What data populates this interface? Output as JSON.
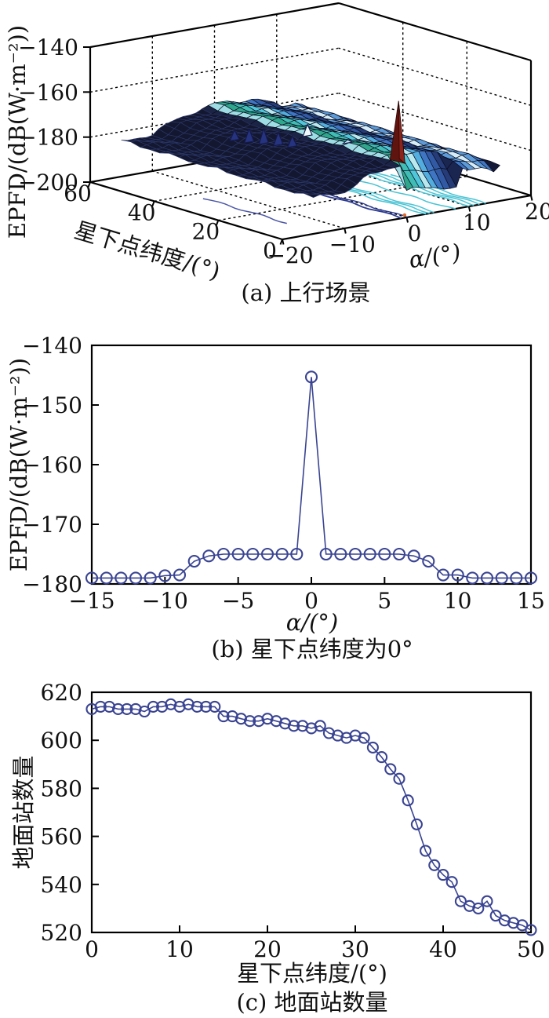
{
  "figure": {
    "background": "#ffffff",
    "axis_color": "#000000",
    "marker_color": "#3A4492"
  },
  "chart_data": [
    {
      "type": "surface3d",
      "title": "(a) 上行场景",
      "xlabel": "α/(°)",
      "ylabel": "星下点纬度/(°)",
      "zlabel": "EPFD/(dB(W·m⁻²))",
      "xlim": [
        -20,
        20
      ],
      "ylim": [
        0,
        60
      ],
      "zlim": [
        -200,
        -140
      ],
      "xticks": [
        -20,
        -10,
        0,
        10,
        20
      ],
      "yticks": [
        0,
        20,
        40,
        60
      ],
      "zticks": [
        -140,
        -160,
        -180,
        -200
      ],
      "grid": "dashed gridlines on back walls and floor",
      "description": "EPFD surface over boresight offset α and sub-satellite latitude: flat dark plateau near −184 dB for α<−2, colored ridge rising to ≈−175 dB for α −1…8, lower shelf ≈−181 dB for α 9…14, small navy/white peaks ≈−172 dB near α −7…0 lat 27…40, tall dark-red spike to ≈−150 dB near α 0 lat 3, contour projections on the floor",
      "surface": {
        "alpha_start": -15,
        "alpha_step": 1,
        "alpha_end": 15,
        "lat_start": 0,
        "lat_end": 60,
        "lat_step": 3,
        "base_z": [
          -184,
          -184,
          -184,
          -184,
          -184,
          -184,
          -182.5,
          -181,
          -179.5,
          -178.5,
          -178,
          -177.5,
          -177,
          -176.5,
          -176,
          -174.8,
          -174.6,
          -174.8,
          -175.2,
          -175.6,
          -176,
          -176.4,
          -176.8,
          -177.5,
          -180,
          -180.8,
          -180.8,
          -180.8,
          -181,
          -182.5,
          -184
        ],
        "column_colors": [
          "#13172f",
          "#13172f",
          "#13172f",
          "#13172f",
          "#13172f",
          "#13172f",
          "#13172f",
          "#13172f",
          "#13172f",
          "#13172f",
          "#13172f",
          "#13172f",
          "#13172f",
          "#1c2446",
          "#9fdde4",
          "#2ea78c",
          "#40bdb4",
          "#4fc6d9",
          "#b9e9ef",
          "#52aede",
          "#3f76c4",
          "#3259a3",
          "#253c78",
          "#1a2550",
          "#3f76c4",
          "#5d9bd8",
          "#d6edf7",
          "#5d9bd8",
          "#3f76c4",
          "#141938",
          "#141938"
        ],
        "dark_mesh_stroke": "#2a3668",
        "light_mesh_stroke": "#0b0e22",
        "front_dip": {
          "alpha_min": 0,
          "alpha_max": 8,
          "lat_below": 6,
          "rate": 2.2
        }
      },
      "peaks": [
        {
          "alpha": -7.6,
          "lat": 39,
          "top_z": -174.0,
          "base_z": -178.5,
          "color": "#26337f"
        },
        {
          "alpha": -6.8,
          "lat": 36,
          "top_z": -172.5,
          "base_z": -178.5,
          "color": "#26337f"
        },
        {
          "alpha": -6.0,
          "lat": 33,
          "top_z": -171.6,
          "base_z": -178.2,
          "color": "#26337f"
        },
        {
          "alpha": -5.2,
          "lat": 30,
          "top_z": -172.3,
          "base_z": -178.0,
          "color": "#26337f"
        },
        {
          "alpha": -4.5,
          "lat": 27,
          "top_z": -173.2,
          "base_z": -177.8,
          "color": "#26337f"
        },
        {
          "alpha": -0.5,
          "lat": 30,
          "top_z": -171.2,
          "base_z": -176.2,
          "color": "#eef8fa"
        },
        {
          "alpha": 0.8,
          "lat": 20,
          "top_z": -174.3,
          "base_z": -175.8,
          "color": "#bfe9ee"
        }
      ],
      "red_spike": {
        "alpha": 0.5,
        "lat": 3.5,
        "top_z": -150,
        "base_z": -176.5,
        "left_color": "#5f1410",
        "right_color": "#8b241b"
      },
      "floor_contours": [
        {
          "alpha": -14.0,
          "lat_from": 10,
          "lat_to": 36,
          "color": "#4a55a5",
          "width": 1.5
        },
        {
          "alpha": -0.7,
          "lat_from": 0,
          "lat_to": 60,
          "color": "#2b3a8f",
          "width": 1.8
        },
        {
          "alpha": 0.1,
          "lat_from": 0,
          "lat_to": 60,
          "color": "#2b3a8f",
          "width": 1.4
        },
        {
          "alpha": 3.1,
          "lat_from": 0,
          "lat_to": 60,
          "color": "#49c3d4",
          "width": 1.5
        },
        {
          "alpha": 3.9,
          "lat_from": 0,
          "lat_to": 60,
          "color": "#49c3d4",
          "width": 1.5
        },
        {
          "alpha": 4.7,
          "lat_from": 0,
          "lat_to": 58,
          "color": "#49c3d4",
          "width": 1.5
        },
        {
          "alpha": 7.6,
          "lat_from": 0,
          "lat_to": 56,
          "color": "#49c3d4",
          "width": 1.5
        },
        {
          "alpha": 10.3,
          "lat_from": 0,
          "lat_to": 42,
          "color": "#49c3d4",
          "width": 1.5
        },
        {
          "alpha": 11.1,
          "lat_from": 0,
          "lat_to": 42,
          "color": "#49c3d4",
          "width": 1.5
        },
        {
          "alpha": 11.9,
          "lat_from": 0,
          "lat_to": 38,
          "color": "#49c3d4",
          "width": 1.5
        },
        {
          "alpha": 12.7,
          "lat_from": 0,
          "lat_to": 30,
          "color": "#49c3d4",
          "width": 1.5
        }
      ],
      "floor_marker": {
        "alpha": 0.6,
        "lat": 1.8,
        "color": "#e06b2a"
      }
    },
    {
      "type": "line",
      "title": "(b) 星下点纬度为0°",
      "xlabel": "α/(°)",
      "ylabel": "EPFD/(dB(W·m⁻²))",
      "xlim": [
        -15,
        15
      ],
      "ylim": [
        -180,
        -140
      ],
      "xticks": [
        -15,
        -10,
        -5,
        0,
        5,
        10,
        15
      ],
      "yticks": [
        -180,
        -170,
        -160,
        -150,
        -140
      ],
      "marker": "circle",
      "line_color": "#3A4492",
      "x": [
        -15,
        -14,
        -13,
        -12,
        -11,
        -10,
        -9,
        -8,
        -7,
        -6,
        -5,
        -4,
        -3,
        -2,
        -1,
        0,
        1,
        2,
        3,
        4,
        5,
        6,
        7,
        8,
        9,
        10,
        11,
        12,
        13,
        14,
        15
      ],
      "y": [
        -179,
        -179,
        -179,
        -179,
        -179,
        -178.6,
        -178.5,
        -176.2,
        -175.3,
        -175,
        -175,
        -175,
        -175,
        -175,
        -175,
        -145.3,
        -175,
        -175,
        -175,
        -175,
        -175,
        -175,
        -175.3,
        -176.2,
        -178.5,
        -178.5,
        -179,
        -179,
        -179,
        -179,
        -179
      ]
    },
    {
      "type": "line",
      "title": "(c) 地面站数量",
      "xlabel": "星下点纬度/(°)",
      "ylabel": "地面站数量",
      "xlim": [
        0,
        50
      ],
      "ylim": [
        520,
        620
      ],
      "xticks": [
        0,
        10,
        20,
        30,
        40,
        50
      ],
      "yticks": [
        520,
        540,
        560,
        580,
        600,
        620
      ],
      "marker": "circle",
      "line_color": "#3A4492",
      "x": [
        0,
        1,
        2,
        3,
        4,
        5,
        6,
        7,
        8,
        9,
        10,
        11,
        12,
        13,
        14,
        15,
        16,
        17,
        18,
        19,
        20,
        21,
        22,
        23,
        24,
        25,
        26,
        27,
        28,
        29,
        30,
        31,
        32,
        33,
        34,
        35,
        36,
        37,
        38,
        39,
        40,
        41,
        42,
        43,
        44,
        45,
        46,
        47,
        48,
        49,
        50
      ],
      "y": [
        613,
        614,
        614,
        613,
        613,
        613,
        612,
        614,
        614,
        615,
        614,
        615,
        614,
        614,
        614,
        610,
        610,
        609,
        608,
        608,
        609,
        608,
        607,
        606,
        606,
        605,
        606,
        603,
        602,
        601,
        602,
        601,
        597,
        593,
        588,
        584,
        575,
        565,
        554,
        548,
        544,
        541,
        533,
        531,
        530,
        533,
        527,
        525,
        524,
        523,
        521
      ]
    }
  ]
}
